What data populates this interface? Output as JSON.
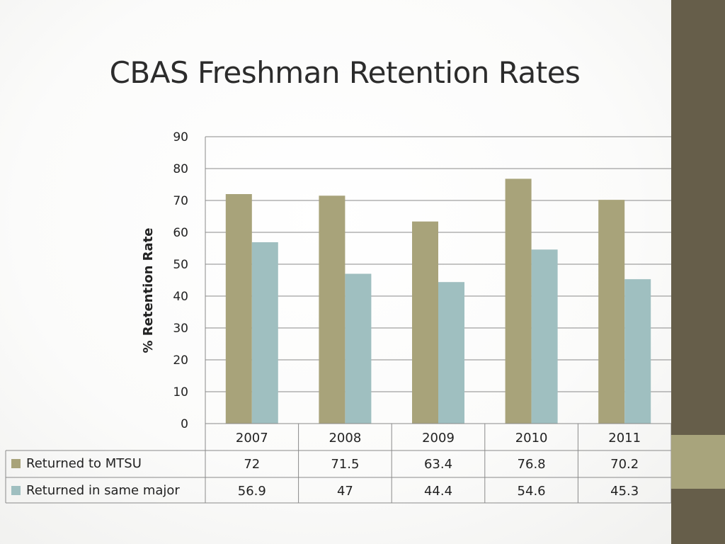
{
  "slide": {
    "title": "CBAS Freshman Retention Rates",
    "colors": {
      "sidebar": "#665e4a",
      "accent": "#a8a47c"
    }
  },
  "chart_data": {
    "type": "bar",
    "ylabel": "% Retention Rate",
    "ylim": [
      0,
      90
    ],
    "yticks": [
      0,
      10,
      20,
      30,
      40,
      50,
      60,
      70,
      80,
      90
    ],
    "grid": true,
    "categories": [
      "2007",
      "2008",
      "2009",
      "2010",
      "2011"
    ],
    "series": [
      {
        "name": "Returned to MTSU",
        "color": "#a8a37a",
        "values": [
          72,
          71.5,
          63.4,
          76.8,
          70.2
        ],
        "labels": [
          "72",
          "71.5",
          "63.4",
          "76.8",
          "70.2"
        ]
      },
      {
        "name": "Returned in same major",
        "color": "#9fbfc0",
        "values": [
          56.9,
          47,
          44.4,
          54.6,
          45.3
        ],
        "labels": [
          "56.9",
          "47",
          "44.4",
          "54.6",
          "45.3"
        ]
      }
    ],
    "legend": "data-table"
  }
}
